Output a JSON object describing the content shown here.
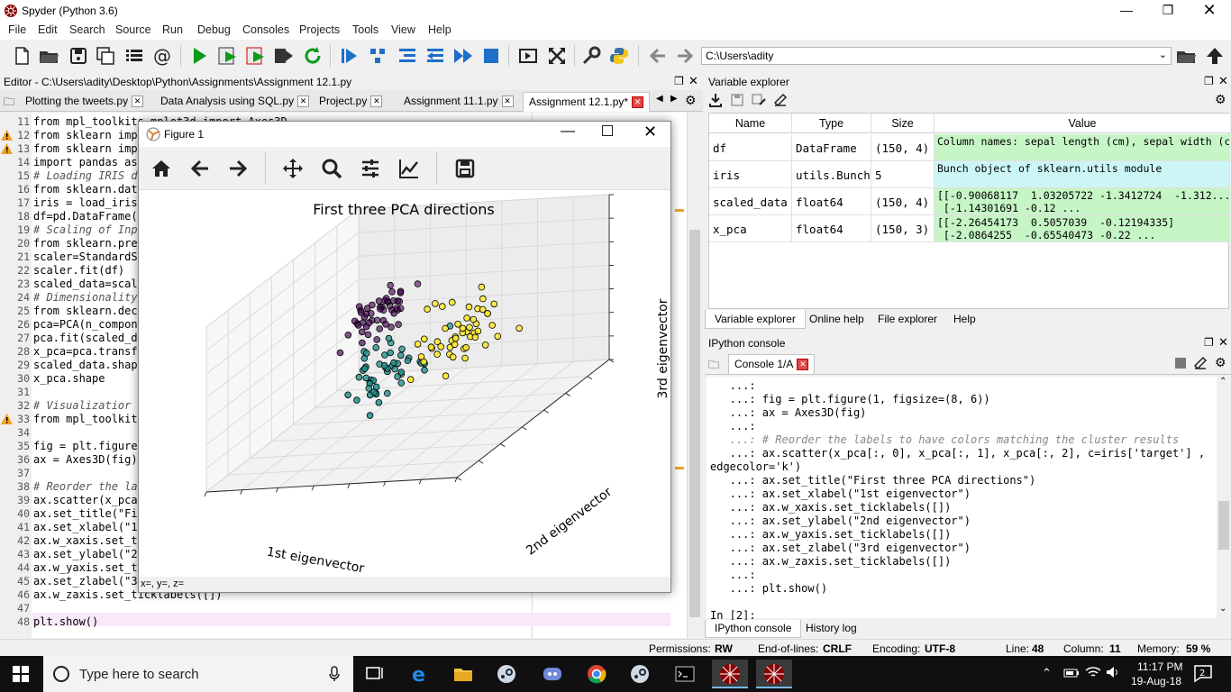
{
  "window": {
    "title": "Spyder (Python 3.6)"
  },
  "menu": [
    "File",
    "Edit",
    "Search",
    "Source",
    "Run",
    "Debug",
    "Consoles",
    "Projects",
    "Tools",
    "View",
    "Help"
  ],
  "path": "C:\\Users\\adity",
  "editor": {
    "header": "Editor - C:\\Users\\adity\\Desktop\\Python\\Assignments\\Assignment 12.1.py",
    "tabs": [
      "Plotting the tweets.py",
      "Data Analysis using SQL.py",
      "Project.py",
      "Assignment 11.1.py",
      "Assignment 12.1.py*"
    ],
    "lines": [
      {
        "n": "11",
        "t": "from mpl_toolkits.mplot3d import Axes3D",
        "warn": false,
        "comment": false
      },
      {
        "n": "12",
        "t": "from sklearn impo",
        "warn": true,
        "comment": false
      },
      {
        "n": "13",
        "t": "from sklearn impo",
        "warn": true,
        "comment": false
      },
      {
        "n": "14",
        "t": "import pandas as",
        "warn": false,
        "comment": false
      },
      {
        "n": "15",
        "t": "# Loading IRIS da",
        "warn": false,
        "comment": true
      },
      {
        "n": "16",
        "t": "from sklearn.data",
        "warn": false,
        "comment": false
      },
      {
        "n": "17",
        "t": "iris = load_iris",
        "warn": false,
        "comment": false
      },
      {
        "n": "18",
        "t": "df=pd.DataFrame(i",
        "warn": false,
        "comment": false
      },
      {
        "n": "19",
        "t": "# Scaling of Inpu",
        "warn": false,
        "comment": true
      },
      {
        "n": "20",
        "t": "from sklearn.prep",
        "warn": false,
        "comment": false
      },
      {
        "n": "21",
        "t": "scaler=StandardSc",
        "warn": false,
        "comment": false
      },
      {
        "n": "22",
        "t": "scaler.fit(df)",
        "warn": false,
        "comment": false
      },
      {
        "n": "23",
        "t": "scaled_data=scale",
        "warn": false,
        "comment": false
      },
      {
        "n": "24",
        "t": "# Dimensionality",
        "warn": false,
        "comment": true
      },
      {
        "n": "25",
        "t": "from sklearn.deco",
        "warn": false,
        "comment": false
      },
      {
        "n": "26",
        "t": "pca=PCA(n_compone",
        "warn": false,
        "comment": false
      },
      {
        "n": "27",
        "t": "pca.fit(scaled_da",
        "warn": false,
        "comment": false
      },
      {
        "n": "28",
        "t": "x_pca=pca.transfo",
        "warn": false,
        "comment": false
      },
      {
        "n": "29",
        "t": "scaled_data.shape",
        "warn": false,
        "comment": false
      },
      {
        "n": "30",
        "t": "x_pca.shape",
        "warn": false,
        "comment": false
      },
      {
        "n": "31",
        "t": "",
        "warn": false,
        "comment": false
      },
      {
        "n": "32",
        "t": "# Visualizatior",
        "warn": false,
        "comment": true
      },
      {
        "n": "33",
        "t": "from mpl_toolkits",
        "warn": true,
        "comment": false
      },
      {
        "n": "34",
        "t": "",
        "warn": false,
        "comment": false
      },
      {
        "n": "35",
        "t": "fig = plt.figure(",
        "warn": false,
        "comment": false
      },
      {
        "n": "36",
        "t": "ax = Axes3D(fig)",
        "warn": false,
        "comment": false
      },
      {
        "n": "37",
        "t": "",
        "warn": false,
        "comment": false
      },
      {
        "n": "38",
        "t": "# Reorder the lab",
        "warn": false,
        "comment": true
      },
      {
        "n": "39",
        "t": "ax.scatter(x_pca[",
        "warn": false,
        "comment": false
      },
      {
        "n": "40",
        "t": "ax.set_title(\"Fir",
        "warn": false,
        "comment": false
      },
      {
        "n": "41",
        "t": "ax.set_xlabel(\"1s",
        "warn": false,
        "comment": false
      },
      {
        "n": "42",
        "t": "ax.w_xaxis.set_ti",
        "warn": false,
        "comment": false
      },
      {
        "n": "43",
        "t": "ax.set_ylabel(\"2n",
        "warn": false,
        "comment": false
      },
      {
        "n": "44",
        "t": "ax.w_yaxis.set_ti",
        "warn": false,
        "comment": false
      },
      {
        "n": "45",
        "t": "ax.set_zlabel(\"3r",
        "warn": false,
        "comment": false
      },
      {
        "n": "46",
        "t": "ax.w_zaxis.set_ticklabels([])",
        "warn": false,
        "comment": false
      },
      {
        "n": "47",
        "t": "",
        "warn": false,
        "comment": false
      },
      {
        "n": "48",
        "t": "plt.show()",
        "warn": false,
        "comment": false
      }
    ]
  },
  "figure": {
    "title": "Figure 1",
    "status": "x=, y=, z=",
    "chart_data": {
      "type": "scatter",
      "title": "First three PCA directions",
      "xlabel": "1st eigenvector",
      "ylabel": "2nd eigenvector",
      "zlabel": "3rd eigenvector",
      "tick_labels": "none",
      "grid": true,
      "series": [
        {
          "class": 0,
          "color": "#440154",
          "n_points": 50
        },
        {
          "class": 1,
          "color": "#21918c",
          "n_points": 50
        },
        {
          "class": 2,
          "color": "#fde725",
          "n_points": 50
        }
      ]
    }
  },
  "variable_explorer": {
    "header": "Variable explorer",
    "columns": [
      "Name",
      "Type",
      "Size",
      "Value"
    ],
    "rows": [
      {
        "name": "df",
        "type": "DataFrame",
        "size": "(150, 4)",
        "value": "Column names: sepal length (cm), sepal width (cm), petal length (cm), ...",
        "color": "#c6f5c6"
      },
      {
        "name": "iris",
        "type": "utils.Bunch",
        "size": "5",
        "value": "Bunch object of sklearn.utils module",
        "color": "#ccf6f6"
      },
      {
        "name": "scaled_data",
        "type": "float64",
        "size": "(150, 4)",
        "value": "[[-0.90068117  1.03205722 -1.3412724  -1.312...\n [-1.14301691 -0.12 ...",
        "color": "#c6f5c6"
      },
      {
        "name": "x_pca",
        "type": "float64",
        "size": "(150, 3)",
        "value": "[[-2.26454173  0.5057039  -0.12194335]\n [-2.0864255  -0.65540473 -0.22 ...",
        "color": "#c6f5c6"
      }
    ],
    "tabs": [
      "Variable explorer",
      "Online help",
      "File explorer",
      "Help"
    ]
  },
  "console": {
    "header": "IPython console",
    "tab": "Console 1/A",
    "lines": [
      {
        "t": "   ...:",
        "cls": ""
      },
      {
        "t": "   ...: fig = plt.figure(1, figsize=(8, 6))",
        "cls": ""
      },
      {
        "t": "   ...: ax = Axes3D(fig)",
        "cls": ""
      },
      {
        "t": "   ...:",
        "cls": ""
      },
      {
        "t": "   ...: # Reorder the labels to have colors matching the cluster results",
        "cls": "con-comment"
      },
      {
        "t": "   ...: ax.scatter(x_pca[:, 0], x_pca[:, 1], x_pca[:, 2], c=iris['target'] ,",
        "cls": ""
      },
      {
        "t": "edgecolor='k')",
        "cls": ""
      },
      {
        "t": "   ...: ax.set_title(\"First three PCA directions\")",
        "cls": ""
      },
      {
        "t": "   ...: ax.set_xlabel(\"1st eigenvector\")",
        "cls": ""
      },
      {
        "t": "   ...: ax.w_xaxis.set_ticklabels([])",
        "cls": ""
      },
      {
        "t": "   ...: ax.set_ylabel(\"2nd eigenvector\")",
        "cls": ""
      },
      {
        "t": "   ...: ax.w_yaxis.set_ticklabels([])",
        "cls": ""
      },
      {
        "t": "   ...: ax.set_zlabel(\"3rd eigenvector\")",
        "cls": ""
      },
      {
        "t": "   ...: ax.w_zaxis.set_ticklabels([])",
        "cls": ""
      },
      {
        "t": "   ...:",
        "cls": ""
      },
      {
        "t": "   ...: plt.show()",
        "cls": ""
      },
      {
        "t": "",
        "cls": ""
      },
      {
        "t": "In [2]:",
        "cls": ""
      }
    ],
    "bottom_tabs": [
      "IPython console",
      "History log"
    ]
  },
  "statusbar": {
    "permissions_label": "Permissions:",
    "permissions": "RW",
    "eol_label": "End-of-lines:",
    "eol": "CRLF",
    "encoding_label": "Encoding:",
    "encoding": "UTF-8",
    "line_label": "Line:",
    "line": "48",
    "column_label": "Column:",
    "column": "11",
    "memory_label": "Memory:",
    "memory": "59 %"
  },
  "taskbar": {
    "search_placeholder": "Type here to search",
    "time": "11:17 PM",
    "date": "19-Aug-18"
  }
}
